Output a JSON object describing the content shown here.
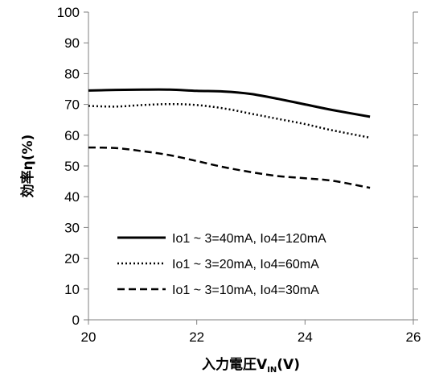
{
  "chart_data": {
    "type": "line",
    "x": [
      20,
      20.5,
      21,
      21.5,
      22,
      22.5,
      23,
      23.5,
      24,
      24.5,
      25.2
    ],
    "series": [
      {
        "name": "Io1 ~ 3=40mA, Io4=120mA",
        "style": "solid",
        "values": [
          74.5,
          74.7,
          74.8,
          74.8,
          74.4,
          74.2,
          73.4,
          71.8,
          70.0,
          68.2,
          66.0
        ]
      },
      {
        "name": "Io1 ~ 3=20mA, Io4=60mA",
        "style": "dotted",
        "values": [
          69.5,
          69.3,
          69.8,
          70.1,
          69.8,
          68.7,
          67.0,
          65.3,
          63.6,
          61.6,
          59.2
        ]
      },
      {
        "name": "Io1 ~ 3=10mA, Io4=30mA",
        "style": "dashed",
        "values": [
          56.0,
          55.8,
          54.8,
          53.5,
          51.6,
          49.6,
          48.0,
          46.7,
          46.0,
          45.2,
          42.9
        ]
      }
    ],
    "xlim": [
      20,
      26
    ],
    "ylim": [
      0,
      100
    ],
    "x_ticks": [
      "20",
      "22",
      "24",
      "26"
    ],
    "y_ticks": [
      "0",
      "10",
      "20",
      "30",
      "40",
      "50",
      "60",
      "70",
      "80",
      "90",
      "100"
    ],
    "ylabel": "効率η(%)",
    "xlabel_main": "入力電圧V",
    "xlabel_sub": "IN",
    "xlabel_tail": "(V)",
    "grid": false,
    "legend_position": "bottom-right inside plot",
    "line_color": "#000000"
  }
}
